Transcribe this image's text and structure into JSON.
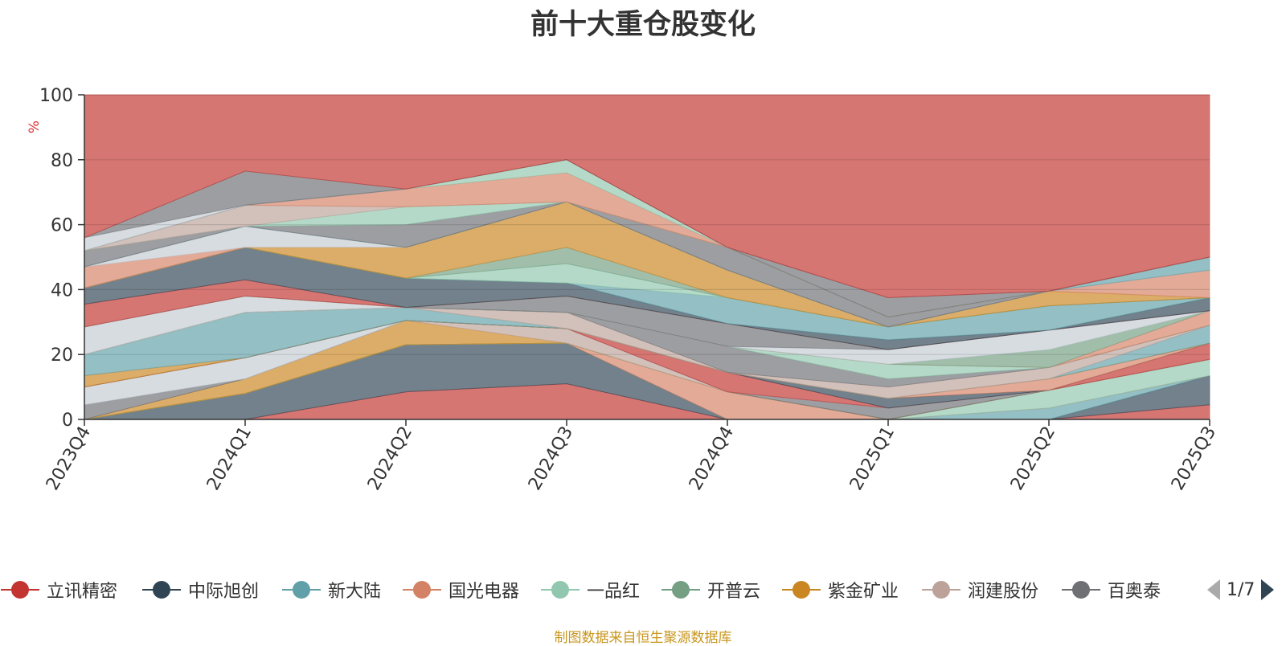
{
  "chart_data": {
    "type": "area",
    "title": "前十大重仓股变化",
    "ylabel": "%",
    "ylim": [
      0,
      100
    ],
    "yticks": [
      0,
      20,
      40,
      60,
      80,
      100
    ],
    "stacked": true,
    "categories": [
      "2023Q4",
      "2024Q1",
      "2024Q2",
      "2024Q3",
      "2024Q4",
      "2025Q1",
      "2025Q2",
      "2025Q3"
    ],
    "series": [
      {
        "name": "立讯精密",
        "color": "#c23531",
        "values": [
          0,
          0,
          8.5,
          11,
          0,
          0,
          0,
          4.5
        ]
      },
      {
        "name": "中际旭创",
        "color": "#2f4554",
        "values": [
          0,
          8,
          14.5,
          12.5,
          0,
          0,
          0,
          9
        ]
      },
      {
        "name": "新大陆",
        "color": "#61a0a8",
        "values": [
          0,
          0,
          0,
          0,
          0,
          0,
          3.5,
          0
        ]
      },
      {
        "name": "国光电器",
        "color": "#d48265",
        "values": [
          0,
          0,
          0,
          0,
          8.5,
          0,
          0,
          0
        ]
      },
      {
        "name": "一品红",
        "color": "#91c7ae",
        "values": [
          0,
          0,
          0,
          0,
          0,
          0,
          5.5,
          5
        ]
      },
      {
        "name": "开普云",
        "color": "#749f83",
        "values": [
          0,
          0,
          0,
          0,
          0,
          0,
          0,
          0
        ]
      },
      {
        "name": "紫金矿业",
        "color": "#ca8622",
        "values": [
          0,
          4.5,
          7.5,
          0,
          0,
          0,
          0,
          0
        ]
      },
      {
        "name": "润建股份",
        "color": "#bda29a",
        "values": [
          0,
          0,
          0,
          4.5,
          0,
          0,
          0,
          0
        ]
      },
      {
        "name": "百奥泰",
        "color": "#6e7074",
        "values": [
          4.5,
          0,
          0,
          0,
          0,
          3.5,
          0,
          0
        ]
      },
      {
        "name": "",
        "color": "#c4ccd3",
        "values": [
          5.5,
          6.5,
          0,
          0,
          0,
          0,
          0,
          0
        ]
      },
      {
        "name": "",
        "color": "#c23531",
        "values": [
          0,
          0,
          0,
          0,
          6,
          0,
          0,
          5
        ]
      },
      {
        "name": "",
        "color": "#2f4554",
        "values": [
          0,
          0,
          0,
          0,
          0,
          3,
          0,
          0
        ]
      },
      {
        "name": "",
        "color": "#d48265",
        "values": [
          0,
          0,
          0,
          0,
          0,
          0,
          3.5,
          0
        ]
      },
      {
        "name": "",
        "color": "#ca8622",
        "values": [
          3.5,
          0,
          0,
          0,
          0,
          0,
          0,
          0
        ]
      },
      {
        "name": "",
        "color": "#61a0a8",
        "values": [
          6.5,
          14,
          4,
          0,
          0,
          0,
          0,
          5.5
        ]
      },
      {
        "name": "",
        "color": "#bda29a",
        "values": [
          0,
          0,
          0,
          5,
          0,
          3.5,
          3.5,
          0
        ]
      },
      {
        "name": "",
        "color": "#6e7074",
        "values": [
          0,
          0,
          0,
          0,
          8,
          2.5,
          0,
          0
        ]
      },
      {
        "name": "",
        "color": "#91c7ae",
        "values": [
          0,
          0,
          0,
          0,
          0,
          4.5,
          0,
          0
        ]
      },
      {
        "name": "",
        "color": "#d48265",
        "values": [
          0,
          0,
          0,
          0,
          0,
          0,
          0,
          4.5
        ]
      },
      {
        "name": "",
        "color": "#749f83",
        "values": [
          0,
          0,
          0,
          0,
          0,
          0,
          5.5,
          0
        ]
      },
      {
        "name": "",
        "color": "#c4ccd3",
        "values": [
          8.5,
          5,
          0,
          0,
          0,
          4.5,
          6,
          0
        ]
      },
      {
        "name": "",
        "color": "#6e7074",
        "values": [
          0,
          0,
          0,
          5,
          7,
          0,
          0,
          0
        ]
      },
      {
        "name": "",
        "color": "#91c7ae",
        "values": [
          0,
          0,
          0,
          0,
          0,
          0,
          0,
          0
        ]
      },
      {
        "name": "",
        "color": "#c23531",
        "values": [
          7,
          5,
          0,
          0,
          0,
          0,
          0,
          0
        ]
      },
      {
        "name": "",
        "color": "#2f4554",
        "values": [
          5,
          10,
          9,
          4,
          0,
          3,
          0,
          4
        ]
      },
      {
        "name": "",
        "color": "#61a0a8",
        "values": [
          0,
          0,
          0,
          0,
          8,
          4,
          7.5,
          0
        ]
      },
      {
        "name": "",
        "color": "#91c7ae",
        "values": [
          0,
          0,
          0,
          6,
          0,
          0,
          0,
          0
        ]
      },
      {
        "name": "",
        "color": "#749f83",
        "values": [
          0,
          0,
          0,
          5,
          0,
          0,
          0,
          0
        ]
      },
      {
        "name": "",
        "color": "#ca8622",
        "values": [
          0,
          0,
          9.5,
          14,
          8.5,
          0,
          4.5,
          0
        ]
      },
      {
        "name": "",
        "color": "#d48265",
        "values": [
          6.5,
          0,
          0,
          0,
          0,
          0,
          0,
          8.5
        ]
      },
      {
        "name": "",
        "color": "#c4ccd3",
        "values": [
          0,
          6.5,
          0,
          0,
          0,
          0,
          0,
          0
        ]
      },
      {
        "name": "",
        "color": "#61a0a8",
        "values": [
          0,
          0,
          0,
          0,
          0,
          0,
          0,
          4
        ]
      },
      {
        "name": "",
        "color": "#6e7074",
        "values": [
          5,
          0,
          7,
          0,
          7,
          3,
          0,
          0
        ]
      },
      {
        "name": "",
        "color": "#91c7ae",
        "values": [
          0,
          0,
          5.5,
          0,
          0,
          0,
          0,
          0
        ]
      },
      {
        "name": "",
        "color": "#bda29a",
        "values": [
          0,
          6.5,
          0,
          0,
          0,
          0,
          0,
          0
        ]
      },
      {
        "name": "",
        "color": "#d48265",
        "values": [
          0,
          0,
          5.5,
          9,
          0,
          0,
          0,
          0
        ]
      },
      {
        "name": "",
        "color": "#91c7ae",
        "values": [
          0,
          0,
          0,
          4,
          0,
          0,
          0,
          0
        ]
      },
      {
        "name": "",
        "color": "#6e7074",
        "values": [
          0,
          0,
          0,
          0,
          0,
          6,
          0,
          0
        ]
      },
      {
        "name": "",
        "color": "#c4ccd3",
        "values": [
          4,
          0,
          0,
          0,
          0,
          0,
          0,
          0
        ]
      },
      {
        "name": "",
        "color": "#6e7074",
        "values": [
          0,
          10.5,
          0,
          0,
          0,
          0,
          0,
          0
        ]
      }
    ]
  },
  "legend": {
    "items": [
      {
        "label": "立讯精密",
        "color": "#c23531",
        "icon": "circle-line-icon"
      },
      {
        "label": "中际旭创",
        "color": "#2f4554",
        "icon": "circle-line-icon"
      },
      {
        "label": "新大陆",
        "color": "#61a0a8",
        "icon": "circle-line-icon"
      },
      {
        "label": "国光电器",
        "color": "#d48265",
        "icon": "circle-line-icon"
      },
      {
        "label": "一品红",
        "color": "#91c7ae",
        "icon": "circle-line-icon"
      },
      {
        "label": "开普云",
        "color": "#749f83",
        "icon": "circle-line-icon"
      },
      {
        "label": "紫金矿业",
        "color": "#ca8622",
        "icon": "circle-line-icon"
      },
      {
        "label": "润建股份",
        "color": "#bda29a",
        "icon": "circle-line-icon"
      },
      {
        "label": "百奥泰",
        "color": "#6e7074",
        "icon": "circle-line-icon"
      }
    ],
    "pager": {
      "text": "1/7",
      "prev_icon": "triangle-left-icon",
      "next_icon": "triangle-right-icon",
      "prev_color": "#aaaaaa",
      "next_color": "#2f4554"
    }
  },
  "source_note": "制图数据来自恒生聚源数据库",
  "source_note_color": "#c8961e"
}
